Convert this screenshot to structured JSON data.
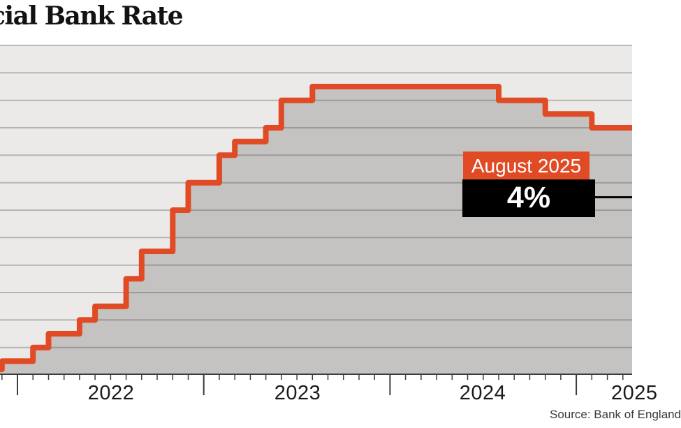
{
  "title": "cial Bank Rate",
  "source": "Source: Bank of England",
  "x_axis": {
    "year_labels": [
      "2022",
      "2023",
      "2024",
      "2025"
    ]
  },
  "colors": {
    "accent_orange": "#E04B25",
    "callout_bg": "#000000",
    "callout_text": "#FFFFFF",
    "area_fill": "#C5C3C1",
    "plot_bg": "#EBEAE8",
    "gridline": "rgba(60,58,55,0.30)",
    "axis": "#3E3C3A",
    "pointer_black": "#060606"
  },
  "chart_data": {
    "type": "area",
    "subtype": "step-line",
    "title_visible": "cial Bank Rate",
    "unit": "%",
    "ylim": [
      0,
      6
    ],
    "gridline_interval": 0.5,
    "grid": "horizontal",
    "legend": "none",
    "x_visible_range": [
      "2021-11",
      "2025-04"
    ],
    "x_year_tick_months": [
      "2022-01",
      "2023-01",
      "2024-01",
      "2025-01"
    ],
    "start": {
      "date": "2021-11",
      "rate": 0.1
    },
    "steps": [
      {
        "date": "2021-12",
        "rate": 0.25
      },
      {
        "date": "2022-02",
        "rate": 0.5
      },
      {
        "date": "2022-03",
        "rate": 0.75
      },
      {
        "date": "2022-05",
        "rate": 1.0
      },
      {
        "date": "2022-06",
        "rate": 1.25
      },
      {
        "date": "2022-08",
        "rate": 1.75
      },
      {
        "date": "2022-09",
        "rate": 2.25
      },
      {
        "date": "2022-11",
        "rate": 3.0
      },
      {
        "date": "2022-12",
        "rate": 3.5
      },
      {
        "date": "2023-02",
        "rate": 4.0
      },
      {
        "date": "2023-03",
        "rate": 4.25
      },
      {
        "date": "2023-05",
        "rate": 4.5
      },
      {
        "date": "2023-06",
        "rate": 5.0
      },
      {
        "date": "2023-08",
        "rate": 5.25
      },
      {
        "date": "2024-08",
        "rate": 5.0
      },
      {
        "date": "2024-11",
        "rate": 4.75
      },
      {
        "date": "2025-02",
        "rate": 4.5
      }
    ],
    "annotation": {
      "label": "August 2025",
      "value_label": "4%",
      "value_pct": 4
    }
  }
}
